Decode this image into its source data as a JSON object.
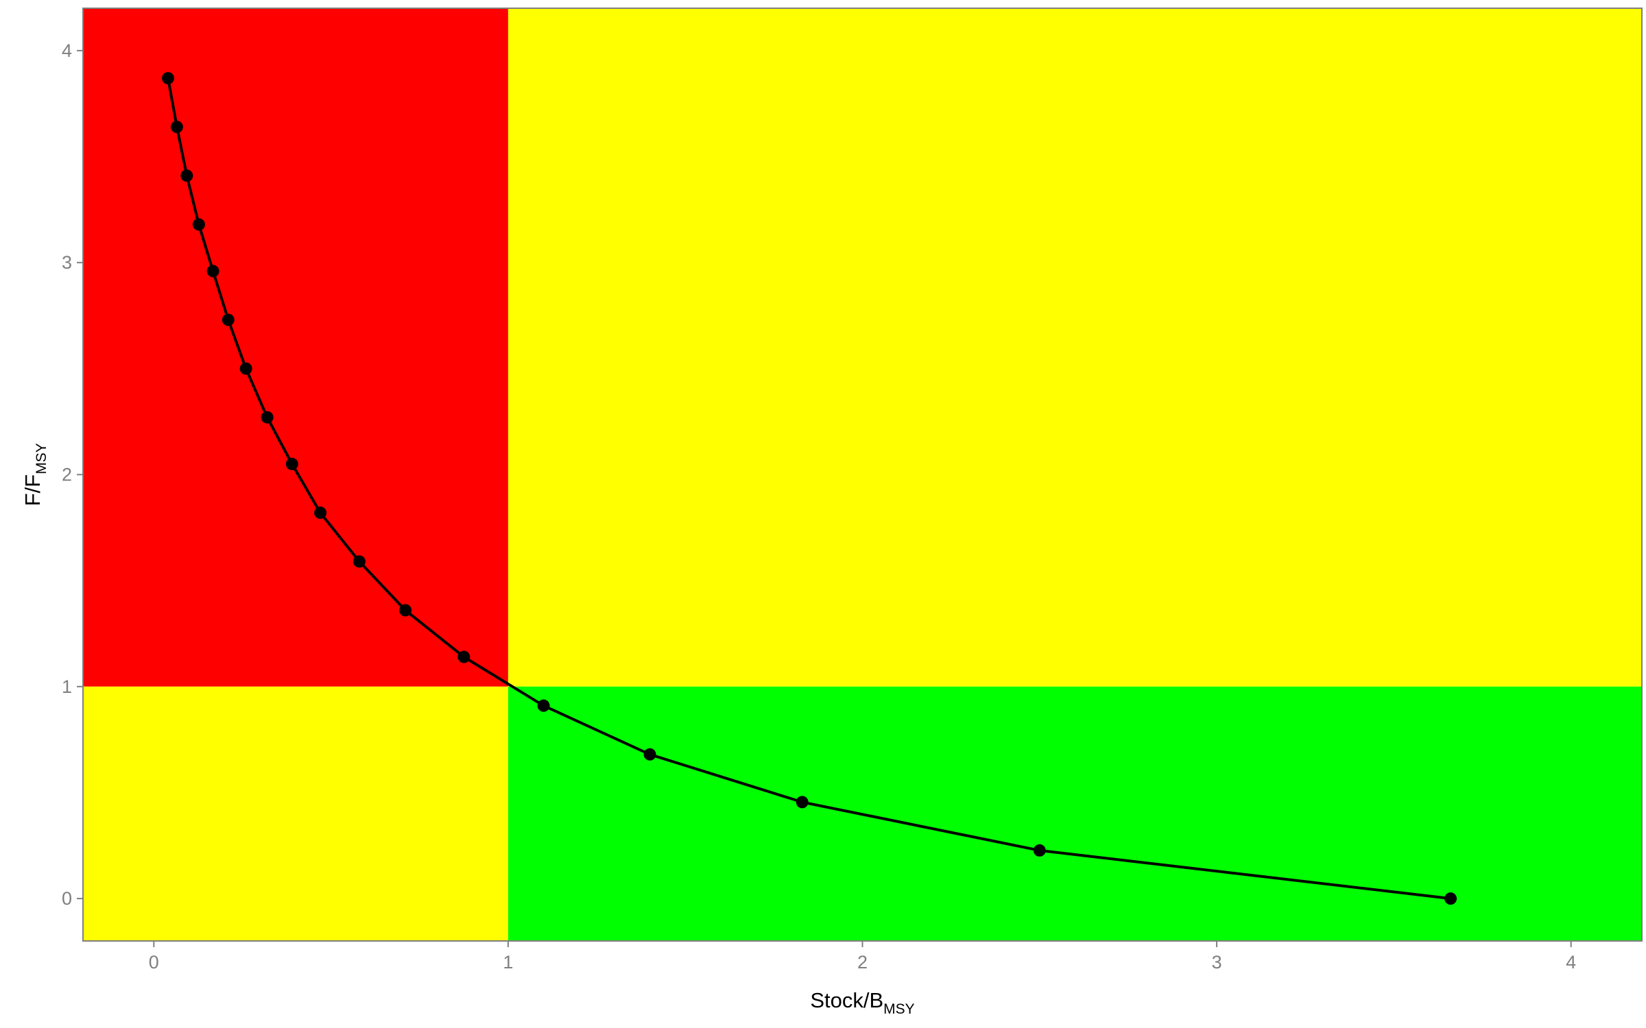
{
  "chart_data": {
    "type": "scatter",
    "title": "",
    "xlabel": {
      "main": "Stock/B",
      "sub": "MSY"
    },
    "ylabel": {
      "main": "F/F",
      "sub": "MSY"
    },
    "xlim": [
      -0.2,
      4.2
    ],
    "ylim": [
      -0.2,
      4.2
    ],
    "xticks": [
      0,
      1,
      2,
      3,
      4
    ],
    "yticks": [
      0,
      1,
      2,
      3,
      4
    ],
    "xtick_labels": [
      "0",
      "1",
      "2",
      "3",
      "4"
    ],
    "ytick_labels": [
      "0",
      "1",
      "2",
      "3",
      "4"
    ],
    "grid": false,
    "legend": "none",
    "reference": {
      "x": 1,
      "y": 1
    },
    "quadrant_colors": {
      "top_left": "#ff0000",
      "top_right": "#ffff00",
      "bottom_left": "#ffff00",
      "bottom_right": "#00ff00"
    },
    "line_color": "#000000",
    "point_color": "#000000",
    "series": [
      {
        "x": [
          0.04,
          0.065,
          0.093,
          0.127,
          0.167,
          0.21,
          0.26,
          0.32,
          0.39,
          0.47,
          0.58,
          0.71,
          0.875,
          1.1,
          1.4,
          1.83,
          2.5,
          3.66
        ],
        "y": [
          3.87,
          3.64,
          3.41,
          3.18,
          2.96,
          2.73,
          2.5,
          2.27,
          2.05,
          1.82,
          1.59,
          1.36,
          1.14,
          0.91,
          0.68,
          0.455,
          0.227,
          0.0
        ]
      }
    ]
  }
}
